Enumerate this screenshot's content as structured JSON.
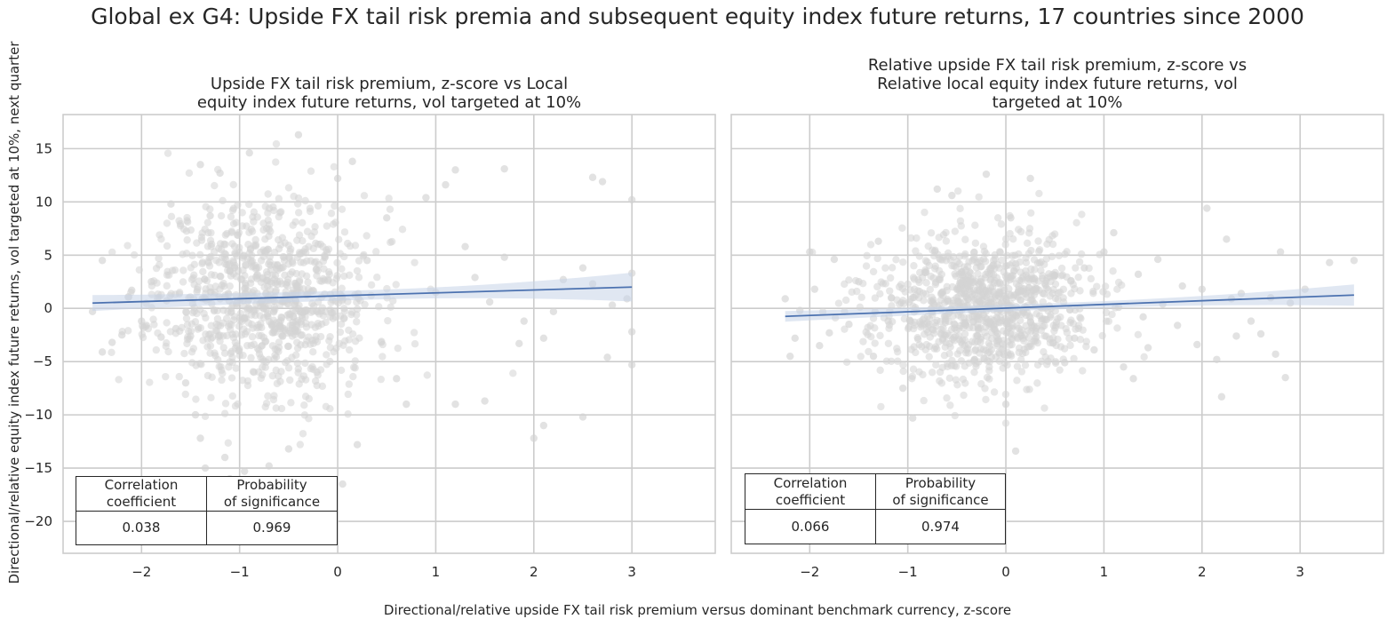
{
  "figure": {
    "title": "Global ex G4: Upside FX tail risk premia and subsequent equity index future returns, 17 countries since 2000",
    "ylabel": "Directional/relative equity index future returns, vol targeted at 10%, next quarter",
    "xlabel": "Directional/relative upside FX tail risk premium versus dominant benchmark currency, z-score"
  },
  "colors": {
    "points": "#d3d3d3",
    "line": "#4c72b0",
    "band": "#c7d3e8",
    "grid": "#cccccc",
    "spine": "#cccccc"
  },
  "chart_data": [
    {
      "type": "scatter",
      "title_lines": [
        "Upside FX tail risk premium, z-score vs Local",
        "equity index future returns, vol targeted at 10%"
      ],
      "xlim": [
        -2.8,
        3.85
      ],
      "ylim": [
        -23,
        18.2
      ],
      "xticks": [
        -2,
        -1,
        0,
        1,
        2,
        3
      ],
      "yticks": [
        -20,
        -15,
        -10,
        -5,
        0,
        5,
        10,
        15
      ],
      "grid": true,
      "cloud": {
        "n": 950,
        "x_center": -0.75,
        "x_spread": 0.55,
        "y_center": 1.2,
        "y_spread": 4.6,
        "seed": 11
      },
      "points": [
        [
          -2.5,
          -0.3
        ],
        [
          -2.4,
          4.5
        ],
        [
          -2.3,
          -3.2
        ],
        [
          -2.4,
          -4.1
        ],
        [
          -2.2,
          -2.5
        ],
        [
          -2.1,
          1.7
        ],
        [
          -1.95,
          -1.6
        ],
        [
          -1.9,
          2.5
        ],
        [
          -2.0,
          -1.2
        ],
        [
          -1.8,
          -2.7
        ],
        [
          -1.65,
          -1.9
        ],
        [
          -1.7,
          9.8
        ],
        [
          -1.5,
          -2.6
        ],
        [
          -1.55,
          -7
        ],
        [
          -1.45,
          -10
        ],
        [
          -1.4,
          -12.2
        ],
        [
          -1.35,
          -15
        ],
        [
          -1.4,
          13.5
        ],
        [
          -1.3,
          8.7
        ],
        [
          -1.2,
          12.7
        ],
        [
          -1.15,
          -14
        ],
        [
          -1.1,
          -16
        ],
        [
          -0.95,
          -15.3
        ],
        [
          -0.9,
          14.6
        ],
        [
          -0.7,
          -14.8
        ],
        [
          -0.55,
          -17.5
        ],
        [
          -0.4,
          16.3
        ],
        [
          -0.5,
          -13.2
        ],
        [
          0.05,
          -16.5
        ],
        [
          0.0,
          12.2
        ],
        [
          0.15,
          13.8
        ],
        [
          0.2,
          -12.8
        ],
        [
          0.3,
          4.5
        ],
        [
          0.5,
          8.5
        ],
        [
          0.7,
          -9
        ],
        [
          0.9,
          10.4
        ],
        [
          1.0,
          1.5
        ],
        [
          1.1,
          11.6
        ],
        [
          1.2,
          13
        ],
        [
          1.2,
          -9
        ],
        [
          1.4,
          2.9
        ],
        [
          1.5,
          -8.7
        ],
        [
          1.55,
          0.6
        ],
        [
          1.7,
          13.1
        ],
        [
          1.85,
          -3.3
        ],
        [
          2.0,
          -12.2
        ],
        [
          2.1,
          -11
        ],
        [
          2.1,
          -2.8
        ],
        [
          2.3,
          2.7
        ],
        [
          2.5,
          -10.2
        ],
        [
          2.6,
          12.3
        ],
        [
          2.7,
          11.9
        ],
        [
          2.75,
          -4.6
        ],
        [
          2.5,
          3.8
        ],
        [
          2.6,
          2.3
        ],
        [
          3.0,
          10.2
        ],
        [
          3.0,
          -5.3
        ],
        [
          3.0,
          -2.2
        ],
        [
          3.0,
          3.3
        ],
        [
          2.95,
          0.9
        ],
        [
          2.8,
          0.3
        ],
        [
          1.7,
          4.8
        ],
        [
          1.9,
          -1.2
        ],
        [
          2.2,
          -0.3
        ],
        [
          1.3,
          5.8
        ],
        [
          0.6,
          -6.6
        ]
      ],
      "regression": {
        "x": [
          -2.5,
          3.0
        ],
        "y": [
          0.5,
          2.0
        ],
        "band_at_ends": [
          0.75,
          1.35
        ],
        "band_mid": 0.45
      },
      "table": {
        "header": [
          "Correlation\ncoefficient",
          "Probability\nof significance"
        ],
        "values": [
          "0.038",
          "0.969"
        ]
      }
    },
    {
      "type": "scatter",
      "title_lines": [
        "Relative upside FX tail risk premium, z-score vs",
        "Relative local equity index future returns, vol",
        "targeted at 10%"
      ],
      "xlim": [
        -2.8,
        3.85
      ],
      "ylim": [
        -23,
        18.2
      ],
      "xticks": [
        -2,
        -1,
        0,
        1,
        2,
        3
      ],
      "yticks": [
        -20,
        -15,
        -10,
        -5,
        0,
        5,
        10,
        15
      ],
      "grid": true,
      "cloud": {
        "n": 1000,
        "x_center": -0.25,
        "x_spread": 0.55,
        "y_center": 0.0,
        "y_spread": 3.4,
        "seed": 23
      },
      "points": [
        [
          -2.25,
          0.9
        ],
        [
          -2.2,
          -4.5
        ],
        [
          -2.15,
          -2.8
        ],
        [
          -2.1,
          -0.2
        ],
        [
          -2.0,
          5.3
        ],
        [
          -1.95,
          1.8
        ],
        [
          -1.9,
          -3.5
        ],
        [
          -1.8,
          -2.3
        ],
        [
          -1.75,
          4.6
        ],
        [
          -1.6,
          -1.5
        ],
        [
          -1.5,
          2.5
        ],
        [
          -1.35,
          -4.5
        ],
        [
          -1.3,
          6.3
        ],
        [
          -1.2,
          -1.2
        ],
        [
          -1.05,
          -7.5
        ],
        [
          -0.95,
          -10.3
        ],
        [
          -0.7,
          11.2
        ],
        [
          -0.55,
          10.6
        ],
        [
          -0.2,
          12.6
        ],
        [
          0.0,
          -9
        ],
        [
          0.05,
          8.5
        ],
        [
          0.1,
          -13.4
        ],
        [
          0.25,
          12.2
        ],
        [
          0.6,
          -5.1
        ],
        [
          0.7,
          -2.8
        ],
        [
          0.8,
          3.8
        ],
        [
          1.0,
          5.3
        ],
        [
          1.1,
          7.1
        ],
        [
          1.2,
          -5.5
        ],
        [
          1.3,
          -6.6
        ],
        [
          1.35,
          3.2
        ],
        [
          1.45,
          -3.7
        ],
        [
          1.6,
          0.4
        ],
        [
          1.75,
          -1.6
        ],
        [
          1.95,
          -3.4
        ],
        [
          2.0,
          1.8
        ],
        [
          2.05,
          9.4
        ],
        [
          2.15,
          -4.8
        ],
        [
          2.2,
          -8.3
        ],
        [
          2.3,
          0.9
        ],
        [
          2.4,
          1.4
        ],
        [
          2.5,
          -1.2
        ],
        [
          2.6,
          -2.4
        ],
        [
          2.75,
          -4.3
        ],
        [
          2.8,
          5.3
        ],
        [
          2.85,
          -6.5
        ],
        [
          2.9,
          0.5
        ],
        [
          3.05,
          1.8
        ],
        [
          3.3,
          4.3
        ],
        [
          3.55,
          4.5
        ],
        [
          1.55,
          4.6
        ],
        [
          0.9,
          -3.9
        ],
        [
          1.15,
          0.1
        ],
        [
          1.8,
          2.1
        ],
        [
          2.25,
          6.5
        ],
        [
          2.35,
          -2.6
        ],
        [
          2.7,
          1.0
        ],
        [
          1.4,
          -0.8
        ]
      ],
      "regression": {
        "x": [
          -2.25,
          3.55
        ],
        "y": [
          -0.75,
          1.25
        ],
        "band_at_ends": [
          0.5,
          1.0
        ],
        "band_mid": 0.3
      },
      "table": {
        "header": [
          "Correlation\ncoefficient",
          "Probability\nof significance"
        ],
        "values": [
          "0.066",
          "0.974"
        ]
      }
    }
  ]
}
